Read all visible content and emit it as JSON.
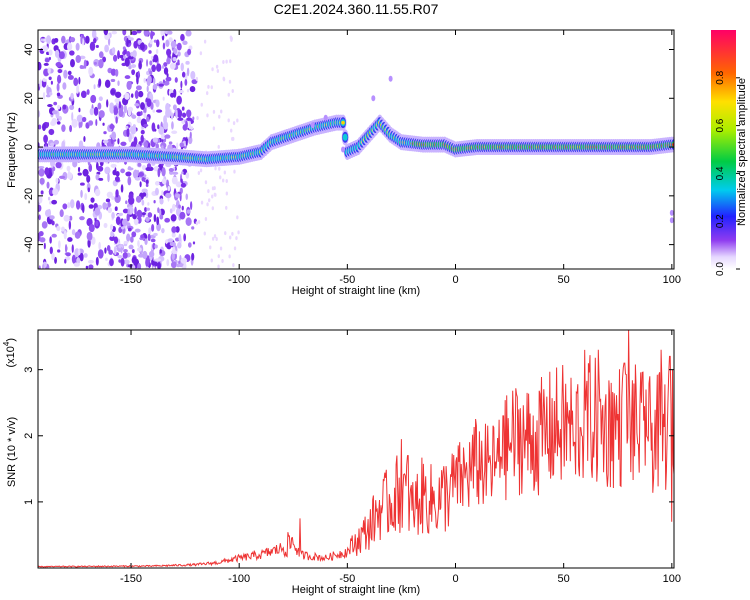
{
  "title": "C2E1.2024.360.11.55.R07",
  "chart_data": [
    {
      "type": "heatmap",
      "xlabel": "Height of straight line (km)",
      "ylabel": "Frequency (Hz)",
      "xlim": [
        -193,
        101
      ],
      "ylim": [
        -50,
        48
      ],
      "xticks": [
        -150,
        -100,
        -50,
        0,
        50,
        100
      ],
      "yticks": [
        -40,
        -20,
        0,
        20,
        40
      ],
      "colorbar": {
        "label": "Normalized spectral amplitude",
        "range": [
          0,
          1
        ],
        "ticks": [
          0.0,
          0.2,
          0.4,
          0.6,
          0.8
        ]
      },
      "trace_center_hz": [
        [
          -193,
          -3
        ],
        [
          -170,
          -3
        ],
        [
          -150,
          -3
        ],
        [
          -130,
          -4
        ],
        [
          -115,
          -5
        ],
        [
          -100,
          -4
        ],
        [
          -90,
          -2
        ],
        [
          -85,
          2
        ],
        [
          -75,
          5
        ],
        [
          -65,
          8
        ],
        [
          -55,
          10
        ],
        [
          -52,
          10
        ],
        [
          -50,
          -2
        ],
        [
          -45,
          0
        ],
        [
          -40,
          5
        ],
        [
          -35,
          10
        ],
        [
          -30,
          5
        ],
        [
          -25,
          2
        ],
        [
          -15,
          1
        ],
        [
          -5,
          1
        ],
        [
          0,
          -1
        ],
        [
          10,
          0
        ],
        [
          30,
          0
        ],
        [
          50,
          0
        ],
        [
          70,
          0
        ],
        [
          90,
          0
        ],
        [
          100,
          1
        ]
      ]
    },
    {
      "type": "line",
      "xlabel": "Height of straight line (km)",
      "ylabel": "SNR (10 * v/v)",
      "yunit_label": "(x10",
      "yunit_exp": "4",
      "xlim": [
        -193,
        101
      ],
      "ylim": [
        0,
        3.6
      ],
      "xticks": [
        -150,
        -100,
        -50,
        0,
        50,
        100
      ],
      "yticks": [
        1,
        2,
        3
      ],
      "color": "#ee3333",
      "envelope": [
        [
          -193,
          0.02
        ],
        [
          -140,
          0.03
        ],
        [
          -120,
          0.05
        ],
        [
          -110,
          0.08
        ],
        [
          -100,
          0.15
        ],
        [
          -90,
          0.2
        ],
        [
          -80,
          0.3
        ],
        [
          -75,
          0.4
        ],
        [
          -72,
          0.2
        ],
        [
          -60,
          0.15
        ],
        [
          -50,
          0.25
        ],
        [
          -40,
          0.6
        ],
        [
          -35,
          0.9
        ],
        [
          -30,
          1.0
        ],
        [
          -25,
          1.2
        ],
        [
          -20,
          0.9
        ],
        [
          -15,
          1.1
        ],
        [
          -10,
          1.0
        ],
        [
          -5,
          1.1
        ],
        [
          0,
          1.3
        ],
        [
          5,
          1.4
        ],
        [
          10,
          1.6
        ],
        [
          15,
          1.5
        ],
        [
          20,
          1.6
        ],
        [
          25,
          1.9
        ],
        [
          30,
          2.0
        ],
        [
          35,
          1.9
        ],
        [
          40,
          2.0
        ],
        [
          45,
          2.1
        ],
        [
          50,
          2.15
        ],
        [
          55,
          2.1
        ],
        [
          60,
          2.3
        ],
        [
          70,
          2.1
        ],
        [
          80,
          2.2
        ],
        [
          90,
          2.0
        ],
        [
          100,
          2.1
        ]
      ],
      "spikes": [
        [
          -72,
          0.75
        ],
        [
          -25,
          1.95
        ],
        [
          -22,
          1.7
        ],
        [
          22,
          2.3
        ],
        [
          55,
          1.9
        ],
        [
          65,
          2.5
        ],
        [
          66,
          3.3
        ],
        [
          72,
          2.8
        ],
        [
          78,
          3.1
        ],
        [
          80,
          3.6
        ],
        [
          88,
          2.7
        ],
        [
          95,
          3.3
        ],
        [
          99,
          3.2
        ],
        [
          100,
          0.7
        ]
      ]
    }
  ]
}
